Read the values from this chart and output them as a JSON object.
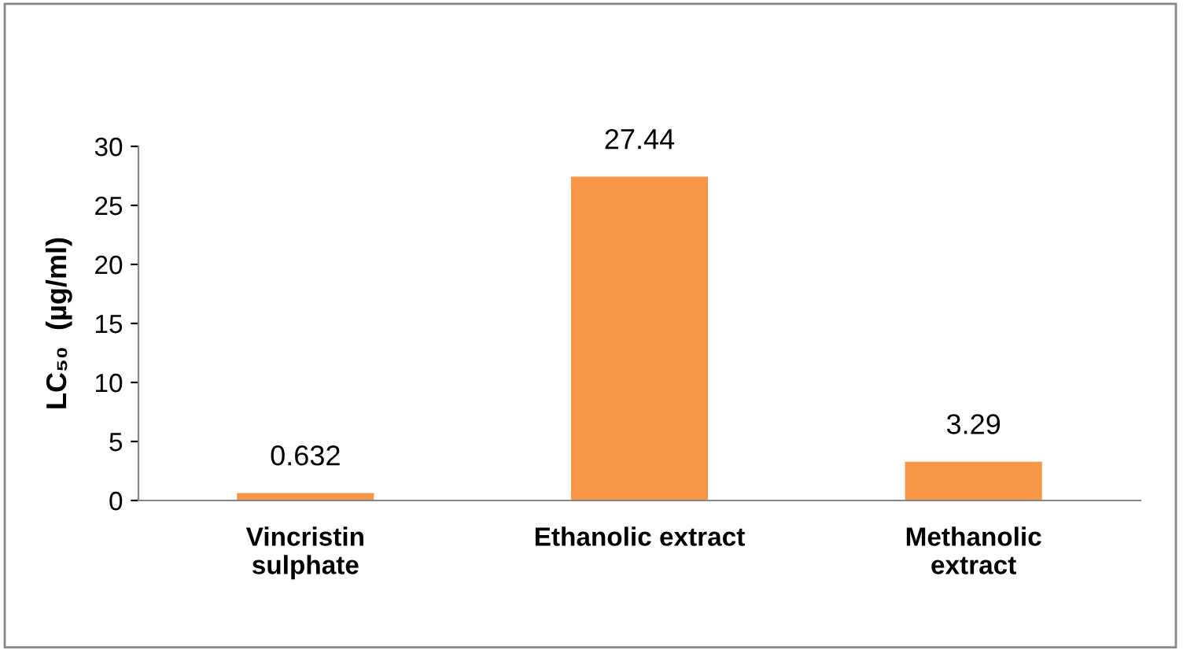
{
  "chart_data": {
    "type": "bar",
    "ylabel": "LC₅₀  (µg/ml)",
    "categories": [
      "Vincristin\nsulphate",
      "Ethanolic extract",
      "Methanolic\nextract"
    ],
    "values": [
      0.632,
      27.44,
      3.29
    ],
    "color": "#f79646",
    "ylim": [
      0,
      30
    ],
    "yticks": [
      0,
      5,
      10,
      15,
      20,
      25,
      30
    ],
    "grid": false,
    "data_labels": true
  }
}
